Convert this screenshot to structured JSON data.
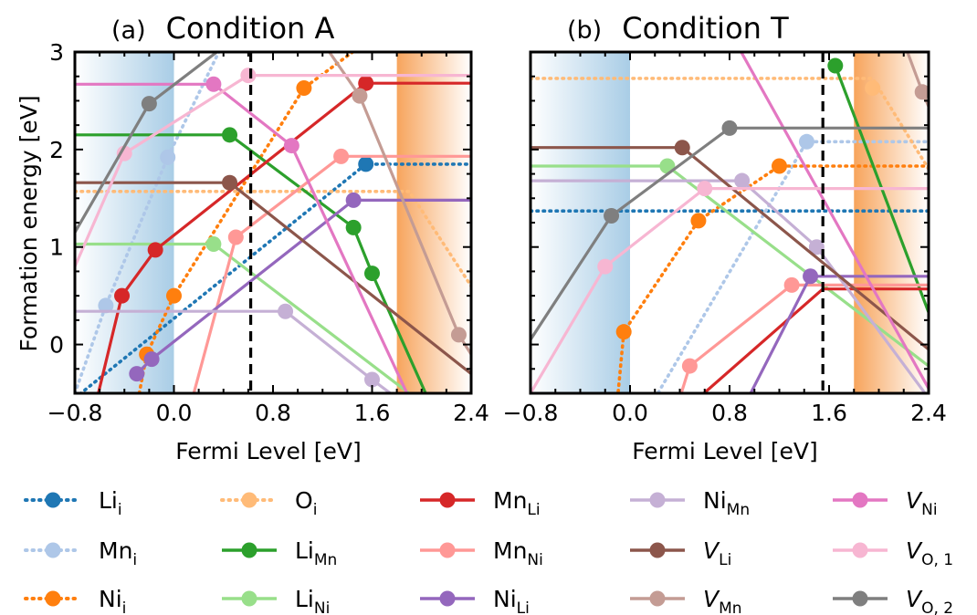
{
  "figure": {
    "ylabel": "Formation energy [eV]",
    "xlabel": "Fermi Level [eV]"
  },
  "chart_data": [
    {
      "type": "line",
      "panel_letter": "(a)",
      "title": "Condition A",
      "xlabel": "Fermi Level [eV]",
      "ylabel": "Formation energy [eV]",
      "xlim": [
        -0.8,
        2.4
      ],
      "ylim": [
        -0.5,
        3.0
      ],
      "xticks": [
        "−0.8",
        "0.0",
        "0.8",
        "1.6",
        "2.4"
      ],
      "yticks": [
        "0",
        "1",
        "2",
        "3"
      ],
      "xticks_values": [
        -0.8,
        0.0,
        0.8,
        1.6,
        2.4
      ],
      "yticks_values": [
        0,
        1,
        2,
        3
      ],
      "vbm": 0.0,
      "cbm_region": [
        1.8,
        2.4
      ],
      "fermi_line": 0.62,
      "series": [
        {
          "key": "Li_i",
          "style": "dotted",
          "points": [
            [
              -0.8,
              -0.55
            ],
            [
              1.55,
              1.85
            ],
            [
              2.4,
              1.85
            ]
          ],
          "markers": [
            [
              1.55,
              1.85
            ]
          ]
        },
        {
          "key": "Mn_i",
          "style": "dotted",
          "points": [
            [
              -0.8,
              -0.5
            ],
            [
              -0.55,
              0.4
            ],
            [
              -0.05,
              1.92
            ],
            [
              0.4,
              3.1
            ]
          ],
          "markers": [
            [
              -0.55,
              0.4
            ],
            [
              -0.05,
              1.92
            ]
          ]
        },
        {
          "key": "Ni_i",
          "style": "dotted",
          "points": [
            [
              -0.28,
              -0.5
            ],
            [
              -0.22,
              -0.1
            ],
            [
              0.0,
              0.5
            ],
            [
              1.05,
              2.63
            ],
            [
              1.55,
              3.1
            ]
          ],
          "markers": [
            [
              -0.22,
              -0.1
            ],
            [
              0.0,
              0.5
            ],
            [
              1.05,
              2.63
            ]
          ]
        },
        {
          "key": "O_i",
          "style": "dotted",
          "points": [
            [
              -0.8,
              1.57
            ],
            [
              1.9,
              1.57
            ],
            [
              2.4,
              0.6
            ]
          ],
          "markers": []
        },
        {
          "key": "Li_Mn",
          "style": "solid",
          "points": [
            [
              -0.8,
              2.15
            ],
            [
              0.45,
              2.15
            ],
            [
              1.45,
              1.2
            ],
            [
              1.6,
              0.73
            ],
            [
              2.05,
              -0.55
            ]
          ],
          "markers": [
            [
              0.45,
              2.15
            ],
            [
              1.45,
              1.2
            ],
            [
              1.6,
              0.73
            ]
          ]
        },
        {
          "key": "Li_Ni",
          "style": "solid",
          "points": [
            [
              -0.8,
              1.03
            ],
            [
              0.32,
              1.03
            ],
            [
              1.95,
              -0.55
            ]
          ],
          "markers": [
            [
              0.32,
              1.03
            ]
          ]
        },
        {
          "key": "Mn_Li",
          "style": "solid",
          "points": [
            [
              -0.62,
              -0.55
            ],
            [
              -0.42,
              0.5
            ],
            [
              -0.15,
              0.97
            ],
            [
              1.55,
              2.68
            ],
            [
              2.4,
              2.68
            ]
          ],
          "markers": [
            [
              -0.42,
              0.5
            ],
            [
              -0.15,
              0.97
            ],
            [
              1.55,
              2.68
            ]
          ]
        },
        {
          "key": "Mn_Ni",
          "style": "solid",
          "points": [
            [
              0.15,
              -0.55
            ],
            [
              0.5,
              1.1
            ],
            [
              1.35,
              1.93
            ],
            [
              2.4,
              1.93
            ]
          ],
          "markers": [
            [
              0.5,
              1.1
            ],
            [
              1.35,
              1.93
            ]
          ]
        },
        {
          "key": "Ni_Li",
          "style": "solid",
          "points": [
            [
              -0.3,
              -0.3
            ],
            [
              -0.18,
              -0.15
            ],
            [
              1.45,
              1.48
            ],
            [
              2.4,
              1.48
            ]
          ],
          "markers": [
            [
              -0.3,
              -0.3
            ],
            [
              -0.18,
              -0.15
            ],
            [
              1.45,
              1.48
            ]
          ]
        },
        {
          "key": "Ni_Mn",
          "style": "solid",
          "points": [
            [
              -0.8,
              0.34
            ],
            [
              0.9,
              0.34
            ],
            [
              1.6,
              -0.36
            ],
            [
              1.8,
              -0.55
            ]
          ],
          "markers": [
            [
              0.9,
              0.34
            ],
            [
              1.6,
              -0.36
            ]
          ]
        },
        {
          "key": "V_Li",
          "style": "solid",
          "points": [
            [
              -0.8,
              1.66
            ],
            [
              0.45,
              1.66
            ],
            [
              2.4,
              -0.3
            ]
          ],
          "markers": [
            [
              0.45,
              1.66
            ]
          ]
        },
        {
          "key": "V_Mn",
          "style": "solid",
          "points": [
            [
              1.2,
              3.1
            ],
            [
              1.5,
              2.55
            ],
            [
              2.3,
              0.1
            ],
            [
              2.4,
              -0.1
            ]
          ],
          "markers": [
            [
              1.5,
              2.55
            ],
            [
              2.3,
              0.1
            ]
          ]
        },
        {
          "key": "V_Ni",
          "style": "solid",
          "points": [
            [
              -0.8,
              2.67
            ],
            [
              0.32,
              2.67
            ],
            [
              0.95,
              2.04
            ],
            [
              1.9,
              -0.55
            ]
          ],
          "markers": [
            [
              0.32,
              2.67
            ],
            [
              0.95,
              2.04
            ]
          ]
        },
        {
          "key": "V_O1",
          "style": "solid",
          "points": [
            [
              -0.8,
              0.8
            ],
            [
              -0.4,
              1.96
            ],
            [
              0.6,
              2.76
            ],
            [
              2.4,
              2.76
            ]
          ],
          "markers": [
            [
              -0.4,
              1.96
            ],
            [
              0.6,
              2.76
            ]
          ]
        },
        {
          "key": "V_O2",
          "style": "solid",
          "points": [
            [
              -0.8,
              1.15
            ],
            [
              -0.2,
              2.47
            ],
            [
              0.45,
              3.1
            ]
          ],
          "markers": [
            [
              -0.2,
              2.47
            ]
          ]
        }
      ]
    },
    {
      "type": "line",
      "panel_letter": "(b)",
      "title": "Condition T",
      "xlabel": "Fermi Level [eV]",
      "ylabel": "",
      "xlim": [
        -0.8,
        2.4
      ],
      "ylim": [
        -0.5,
        3.0
      ],
      "xticks": [
        "−0.8",
        "0.0",
        "0.8",
        "1.6",
        "2.4"
      ],
      "yticks": [],
      "xticks_values": [
        -0.8,
        0.0,
        0.8,
        1.6,
        2.4
      ],
      "yticks_values": [
        0,
        1,
        2,
        3
      ],
      "vbm": 0.0,
      "cbm_region": [
        1.8,
        2.4
      ],
      "fermi_line": 1.55,
      "series": [
        {
          "key": "Li_i",
          "style": "dotted",
          "points": [
            [
              -0.8,
              1.37
            ],
            [
              2.4,
              1.37
            ]
          ],
          "markers": []
        },
        {
          "key": "Mn_i",
          "style": "dotted",
          "points": [
            [
              0.2,
              -0.55
            ],
            [
              1.42,
              2.08
            ],
            [
              2.4,
              2.08
            ]
          ],
          "markers": [
            [
              1.42,
              2.08
            ]
          ]
        },
        {
          "key": "Ni_i",
          "style": "dotted",
          "points": [
            [
              -0.1,
              -0.55
            ],
            [
              -0.05,
              0.13
            ],
            [
              0.55,
              1.27
            ],
            [
              1.2,
              1.83
            ],
            [
              2.4,
              1.83
            ]
          ],
          "markers": [
            [
              -0.05,
              0.13
            ],
            [
              0.55,
              1.27
            ],
            [
              1.2,
              1.83
            ]
          ]
        },
        {
          "key": "O_i",
          "style": "dotted",
          "points": [
            [
              -0.8,
              2.73
            ],
            [
              1.95,
              2.73
            ],
            [
              2.4,
              1.8
            ]
          ],
          "markers": [
            [
              1.95,
              2.63
            ]
          ]
        },
        {
          "key": "Li_Mn",
          "style": "solid",
          "points": [
            [
              1.65,
              2.86
            ],
            [
              2.4,
              0.33
            ]
          ],
          "markers": [
            [
              1.65,
              2.86
            ]
          ]
        },
        {
          "key": "Li_Ni",
          "style": "solid",
          "points": [
            [
              -0.8,
              1.83
            ],
            [
              0.3,
              1.83
            ],
            [
              2.4,
              -0.22
            ]
          ],
          "markers": [
            [
              0.3,
              1.83
            ]
          ]
        },
        {
          "key": "Mn_Li",
          "style": "solid",
          "points": [
            [
              0.55,
              -0.55
            ],
            [
              1.55,
              0.57
            ],
            [
              2.4,
              0.57
            ]
          ],
          "markers": []
        },
        {
          "key": "Mn_Ni",
          "style": "solid",
          "points": [
            [
              0.4,
              -0.55
            ],
            [
              0.48,
              -0.22
            ],
            [
              1.3,
              0.61
            ],
            [
              2.4,
              0.61
            ]
          ],
          "markers": [
            [
              0.48,
              -0.22
            ],
            [
              1.3,
              0.61
            ]
          ]
        },
        {
          "key": "Ni_Li",
          "style": "solid",
          "points": [
            [
              0.95,
              -0.55
            ],
            [
              1.45,
              0.7
            ],
            [
              2.4,
              0.7
            ]
          ],
          "markers": [
            [
              1.45,
              0.7
            ]
          ]
        },
        {
          "key": "Ni_Mn",
          "style": "solid",
          "points": [
            [
              -0.8,
              1.68
            ],
            [
              0.9,
              1.68
            ],
            [
              1.5,
              1.0
            ],
            [
              2.4,
              -0.55
            ]
          ],
          "markers": [
            [
              0.9,
              1.68
            ],
            [
              1.5,
              1.0
            ]
          ]
        },
        {
          "key": "V_Li",
          "style": "solid",
          "points": [
            [
              -0.8,
              2.02
            ],
            [
              0.42,
              2.02
            ],
            [
              2.4,
              -0.05
            ]
          ],
          "markers": [
            [
              0.42,
              2.02
            ]
          ]
        },
        {
          "key": "V_Mn",
          "style": "solid",
          "points": [
            [
              2.2,
              3.1
            ],
            [
              2.35,
              2.59
            ],
            [
              2.4,
              2.44
            ]
          ],
          "markers": [
            [
              2.35,
              2.59
            ]
          ]
        },
        {
          "key": "V_Ni",
          "style": "solid",
          "points": [
            [
              0.85,
              3.1
            ],
            [
              2.4,
              -0.45
            ]
          ],
          "markers": []
        },
        {
          "key": "V_O1",
          "style": "solid",
          "points": [
            [
              -0.8,
              -0.5
            ],
            [
              -0.2,
              0.8
            ],
            [
              0.6,
              1.6
            ],
            [
              2.4,
              1.6
            ]
          ],
          "markers": [
            [
              -0.2,
              0.8
            ],
            [
              0.6,
              1.6
            ]
          ]
        },
        {
          "key": "V_O2",
          "style": "solid",
          "points": [
            [
              -0.8,
              0.05
            ],
            [
              -0.15,
              1.32
            ],
            [
              0.8,
              2.22
            ],
            [
              2.4,
              2.22
            ]
          ],
          "markers": [
            [
              -0.15,
              1.32
            ],
            [
              0.8,
              2.22
            ]
          ]
        }
      ]
    }
  ],
  "legend": [
    {
      "key": "Li_i",
      "base": "Li",
      "sub": "i",
      "italic": false,
      "style": "dotted",
      "color": "#1f77b4"
    },
    {
      "key": "Mn_i",
      "base": "Mn",
      "sub": "i",
      "italic": false,
      "style": "dotted",
      "color": "#aec7e8"
    },
    {
      "key": "Ni_i",
      "base": "Ni",
      "sub": "i",
      "italic": false,
      "style": "dotted",
      "color": "#ff7f0e"
    },
    {
      "key": "O_i",
      "base": "O",
      "sub": "i",
      "italic": false,
      "style": "dotted",
      "color": "#ffbb78"
    },
    {
      "key": "Li_Mn",
      "base": "Li",
      "sub": "Mn",
      "italic": false,
      "style": "solid",
      "color": "#2ca02c"
    },
    {
      "key": "Li_Ni",
      "base": "Li",
      "sub": "Ni",
      "italic": false,
      "style": "solid",
      "color": "#98df8a"
    },
    {
      "key": "Mn_Li",
      "base": "Mn",
      "sub": "Li",
      "italic": false,
      "style": "solid",
      "color": "#d62728"
    },
    {
      "key": "Mn_Ni",
      "base": "Mn",
      "sub": "Ni",
      "italic": false,
      "style": "solid",
      "color": "#ff9896"
    },
    {
      "key": "Ni_Li",
      "base": "Ni",
      "sub": "Li",
      "italic": false,
      "style": "solid",
      "color": "#9467bd"
    },
    {
      "key": "Ni_Mn",
      "base": "Ni",
      "sub": "Mn",
      "italic": false,
      "style": "solid",
      "color": "#c5b0d5"
    },
    {
      "key": "V_Li",
      "base": "V",
      "sub": "Li",
      "italic": true,
      "style": "solid",
      "color": "#8c564b"
    },
    {
      "key": "V_Mn",
      "base": "V",
      "sub": "Mn",
      "italic": true,
      "style": "solid",
      "color": "#c49c94"
    },
    {
      "key": "V_Ni",
      "base": "V",
      "sub": "Ni",
      "italic": true,
      "style": "solid",
      "color": "#e377c2"
    },
    {
      "key": "V_O1",
      "base": "V",
      "sub": "O, 1",
      "italic": true,
      "style": "solid",
      "color": "#f7b6d2"
    },
    {
      "key": "V_O2",
      "base": "V",
      "sub": "O, 2",
      "italic": true,
      "style": "solid",
      "color": "#7f7f7f"
    }
  ]
}
